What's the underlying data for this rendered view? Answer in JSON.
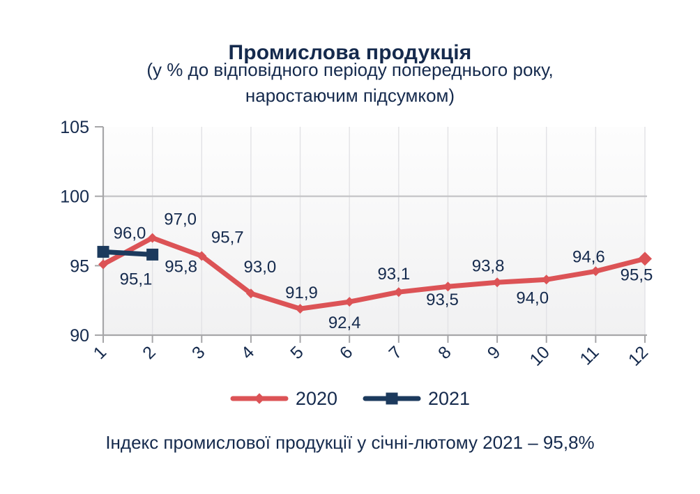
{
  "header": {
    "title": "Промислова продукція",
    "subtitle_line1": "(у % до відповідного періоду попереднього року,",
    "subtitle_line2": "наростаючим підсумком)"
  },
  "colors": {
    "text": "#152A4D",
    "axis": "#A6A6A8",
    "grid": "#E2E2E5",
    "grid_major": "#C6C6C9",
    "series_2020": "#DC5356",
    "series_2021": "#1C3A5D"
  },
  "caption": {
    "text": "Індекс промислової продукції у січні-лютому 2021  – 95,8%"
  },
  "chart_data": {
    "type": "line",
    "title": "Промислова продукція",
    "subtitle": "(у % до відповідного періоду попереднього року, наростаючим підсумком)",
    "categories": [
      1,
      2,
      3,
      4,
      5,
      6,
      7,
      8,
      9,
      10,
      11,
      12
    ],
    "series": [
      {
        "name": "2020",
        "color": "#DC5356",
        "marker": "diamond",
        "values": [
          95.1,
          97.0,
          95.7,
          93.0,
          91.9,
          92.4,
          93.1,
          93.5,
          93.8,
          94.0,
          94.6,
          95.5
        ],
        "labels": [
          "95,1",
          "97,0",
          "95,7",
          "93,0",
          "91,9",
          "92,4",
          "93,1",
          "93,5",
          "93,8",
          "94,0",
          "94,6",
          "95,5"
        ],
        "label_offsets": [
          [
            47,
            21
          ],
          [
            40,
            -27
          ],
          [
            37,
            -27
          ],
          [
            13,
            -38
          ],
          [
            2,
            -23
          ],
          [
            -7,
            30
          ],
          [
            -7,
            -26
          ],
          [
            -8,
            19
          ],
          [
            -13,
            -24
          ],
          [
            -20,
            26
          ],
          [
            -10,
            -21
          ],
          [
            -12,
            23
          ]
        ]
      },
      {
        "name": "2021",
        "color": "#1C3A5D",
        "marker": "square",
        "values": [
          96.0,
          95.8
        ],
        "labels": [
          "96,0",
          "95,8"
        ],
        "label_offsets": [
          [
            38,
            -27
          ],
          [
            41,
            17
          ]
        ]
      }
    ],
    "ylim": [
      90,
      105
    ],
    "yticks": [
      90,
      95,
      100,
      105
    ],
    "xlabel": "",
    "ylabel": "",
    "x_tick_rotation": -45,
    "grid": {
      "h_major_at": 100,
      "v_lines": "per-category"
    },
    "legend_position": "bottom"
  }
}
